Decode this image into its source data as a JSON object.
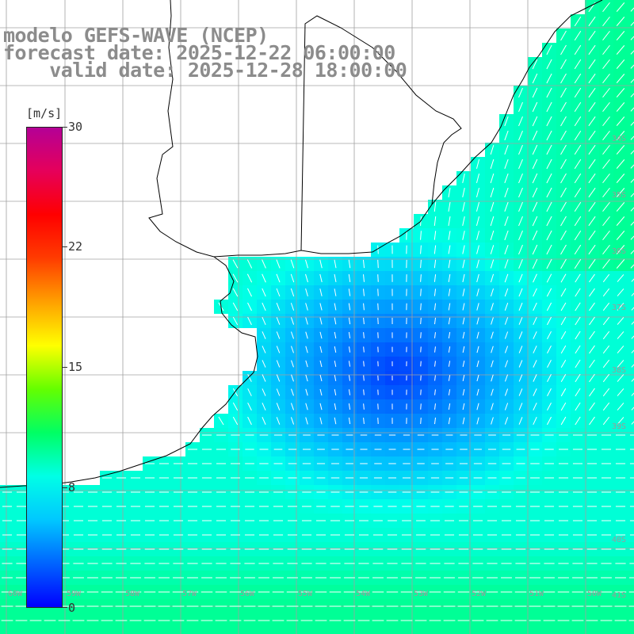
{
  "title": {
    "line1": "modelo GEFS-WAVE (NCEP)",
    "line2": "forecast date: 2025-12-22 06:00:00",
    "line3": "    valid date: 2025-12-28 18:00:00"
  },
  "colorbar": {
    "unit": "[m/s]",
    "ticks": [
      "30",
      "22",
      "15",
      "8",
      "0"
    ],
    "tick_values": [
      30,
      22,
      15,
      8,
      0
    ],
    "range": [
      0,
      30
    ],
    "colors": [
      "#0000ff",
      "#0064ff",
      "#00c8ff",
      "#00ffe6",
      "#00ff64",
      "#64ff00",
      "#ffff00",
      "#ffa000",
      "#ff3c00",
      "#ff0000",
      "#e6005a",
      "#b40096"
    ]
  },
  "grid": {
    "lon_labels": [
      "60W",
      "59W",
      "58W",
      "57W",
      "56W",
      "55W",
      "54W",
      "53W",
      "52W",
      "51W",
      "50W"
    ],
    "lat_labels": [
      "34S",
      "35S",
      "36S",
      "37S",
      "38S",
      "39S",
      "40S",
      "41S"
    ]
  },
  "field": {
    "land_color": "#ffffff",
    "coast_color": "#000000",
    "grid_color": "#a0a0a0",
    "arrow_color": "#ffffff"
  }
}
